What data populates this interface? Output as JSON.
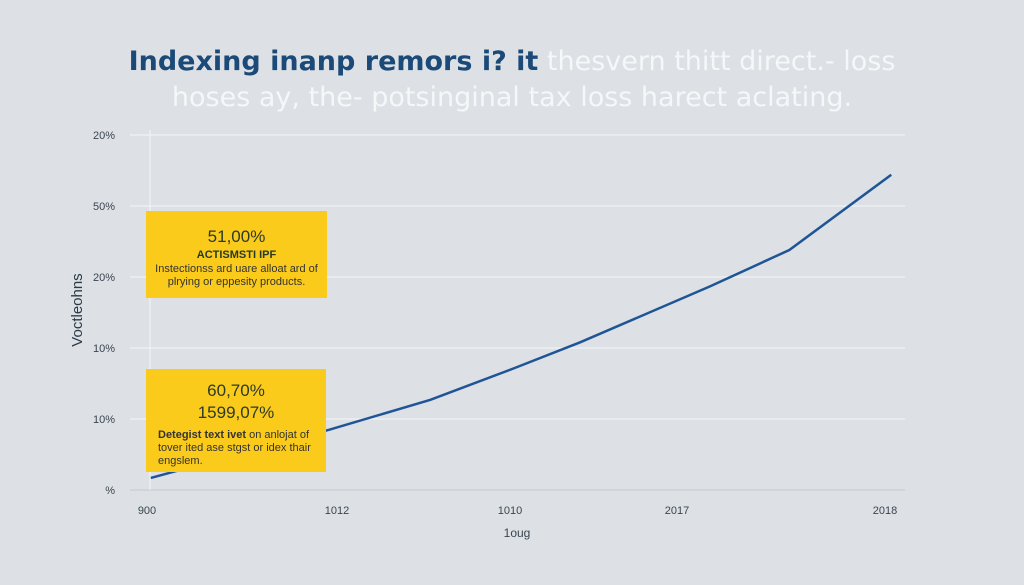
{
  "title": {
    "line1_highlight": "Indexing inanp remors i? it",
    "line1_rest": "thesvern thitt direct.- loss",
    "line2": "hoses ay, the- potsinginal tax loss harect aclating."
  },
  "chart_data": {
    "type": "line",
    "xlabel": "1oug",
    "ylabel": "Voctleohns",
    "x_tick_labels": [
      "900",
      "1012",
      "1010",
      "2017",
      "2018"
    ],
    "y_tick_labels": [
      "%",
      "10%",
      "10%",
      "20%",
      "50%",
      "20%"
    ],
    "grid": true,
    "colors": {
      "line": "#1f5596",
      "annotation": "#fbcb1c",
      "background": "#dde1e5"
    },
    "series": [
      {
        "x": [
          0.02,
          0.96,
          1.54,
          2.03,
          2.42,
          3.16,
          3.54,
          4.03
        ],
        "y": [
          0.17,
          0.85,
          1.27,
          1.72,
          2.08,
          2.87,
          3.38,
          4.44
        ]
      }
    ],
    "annotations": [
      {
        "value": "51,00%",
        "heading": "ACTISMSTI IPF",
        "text": "Instectionss ard uare alloat ard of plrying or eppesity products."
      },
      {
        "value": "60,70%",
        "value2": "1599,07%",
        "bold": "Detegist text ivet",
        "text": " on anlojat of tover ited ase stgst or idex thair engslem."
      }
    ]
  }
}
